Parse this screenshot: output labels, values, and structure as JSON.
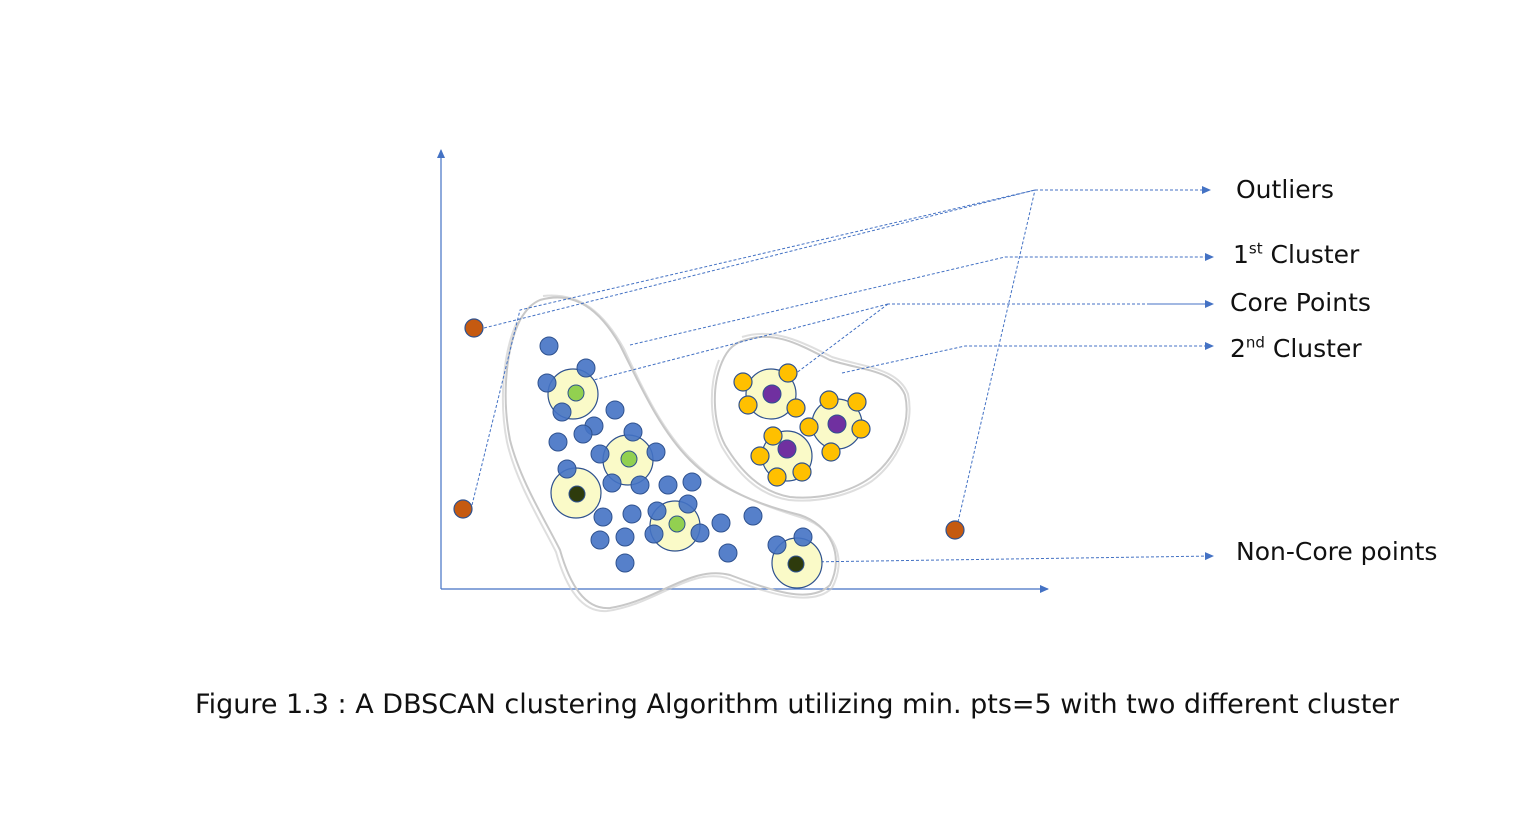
{
  "labels": {
    "outliers": "Outliers",
    "first_cluster_num": "1",
    "first_cluster_sup": "st",
    "first_cluster_text": " Cluster",
    "core_points": "Core Points",
    "second_cluster_num": "2",
    "second_cluster_sup": "nd",
    "second_cluster_text": " Cluster",
    "non_core_points": "Non-Core points"
  },
  "caption": "Figure 1.3 : A DBSCAN clustering Algorithm utilizing  min. pts=5 with two different cluster",
  "colors": {
    "axis": "#4472c4",
    "leader": "#4472c4",
    "cluster_outline": "#c8c8c8",
    "blue_point": "#4472c4",
    "blue_point_stroke": "#2f528f",
    "orange_point": "#ffc000",
    "orange_point_stroke": "#2f528f",
    "outlier_point": "#c55a11",
    "outlier_stroke": "#2f528f",
    "neighborhood_fill": "#fafac8",
    "core_green": "#92d050",
    "core_purple": "#7030a0",
    "noncore_dark": "#2e3b0c"
  }
}
